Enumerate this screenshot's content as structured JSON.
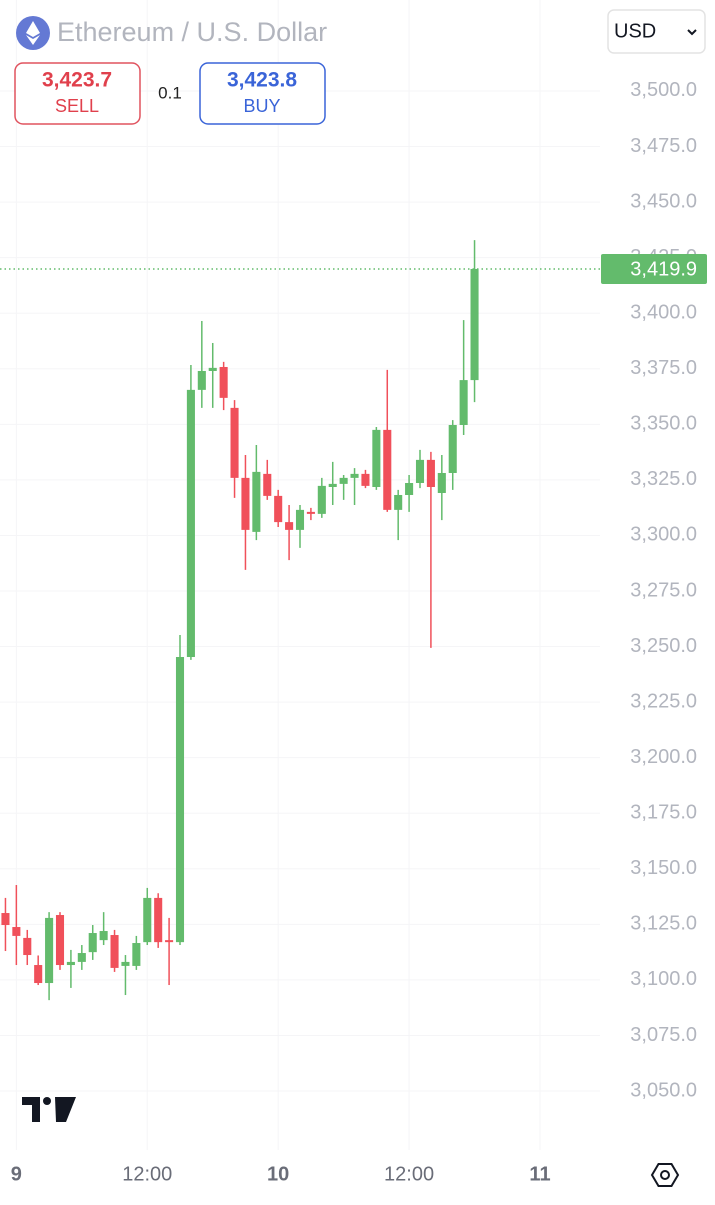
{
  "header": {
    "title": "Ethereum / U.S. Dollar",
    "sell_price": "3,423.7",
    "sell_label": "SELL",
    "spread": "0.1",
    "buy_price": "3,423.8",
    "buy_label": "BUY",
    "currency": "USD"
  },
  "chart_data": {
    "type": "candlestick",
    "up_color": "#63bb6c",
    "down_color": "#f0505a",
    "grid": true,
    "x": [
      -1,
      0,
      1,
      2,
      3,
      4,
      5,
      6,
      7,
      8,
      9,
      10,
      11,
      12,
      13,
      14,
      15,
      16,
      17,
      18,
      19,
      20,
      21,
      22,
      23,
      24,
      25,
      26,
      27,
      28,
      29,
      30,
      31,
      32,
      33,
      34,
      35,
      36,
      37,
      38,
      39,
      40,
      41,
      42
    ],
    "open": [
      3130.1,
      3123.8,
      3118.9,
      3106.7,
      3098.6,
      3129.2,
      3106.7,
      3108.1,
      3112.5,
      3117.9,
      3120.2,
      3106.3,
      3106.3,
      3117,
      3136.9,
      3117.9,
      3117,
      3245.3,
      3365.5,
      3374,
      3375.8,
      3357.4,
      3325.9,
      3301.6,
      3327.7,
      3317.8,
      3306,
      3302.5,
      3310.6,
      3309.7,
      3321.8,
      3323.2,
      3325.9,
      3327.7,
      3321.8,
      3347.5,
      3311.5,
      3318.2,
      3323.6,
      3334,
      3319.1,
      3328.1,
      3349.7,
      3369.9
    ],
    "high": [
      3136.9,
      3142.7,
      3122.5,
      3111,
      3130.5,
      3130.5,
      3113.5,
      3115.7,
      3124.7,
      3130.5,
      3122.5,
      3111.2,
      3119.8,
      3141.4,
      3139,
      3127.9,
      3255.2,
      3376.7,
      3396.5,
      3386.6,
      3378.1,
      3360.9,
      3336.2,
      3340.7,
      3334,
      3320.5,
      3313.7,
      3313.7,
      3312.4,
      3325.9,
      3333.1,
      3327.2,
      3330.3,
      3329.5,
      3348.8,
      3374.5,
      3320.5,
      3327.2,
      3338.5,
      3337.6,
      3336.2,
      3351.9,
      3396.9,
      3432.9
    ],
    "low": [
      3113,
      3106.7,
      3106.7,
      3097.7,
      3090.9,
      3104.5,
      3096.4,
      3104.5,
      3109,
      3115.7,
      3103.6,
      3093.2,
      3104.5,
      3115.7,
      3114.4,
      3097.7,
      3115.7,
      3244,
      3357.4,
      3357.4,
      3356.4,
      3316.9,
      3284.5,
      3297.9,
      3316,
      3303.8,
      3288.9,
      3294.4,
      3306.9,
      3307.9,
      3313.7,
      3316,
      3313.7,
      3321.3,
      3320.5,
      3310.6,
      3297.9,
      3310.6,
      3321.3,
      3249.4,
      3306.9,
      3320.5,
      3345.2,
      3360
    ],
    "close": [
      3124.7,
      3119.8,
      3111.2,
      3098.6,
      3127.9,
      3106.7,
      3108.1,
      3112.1,
      3121.1,
      3122,
      3105.4,
      3108.1,
      3116.6,
      3136.9,
      3117,
      3117,
      3245.3,
      3365.5,
      3374,
      3375.4,
      3361.9,
      3325.9,
      3302.5,
      3328.6,
      3317.8,
      3306,
      3302.5,
      3311.5,
      3309.7,
      3322.3,
      3323.2,
      3325.9,
      3327.7,
      3322.3,
      3347.5,
      3311.5,
      3318.2,
      3323.6,
      3334,
      3321.8,
      3328.1,
      3349.7,
      3369.9,
      3419.9
    ],
    "last_price": {
      "value": 3419.9,
      "label": "3,419.9"
    },
    "xlim": [
      -1.5,
      53.5
    ],
    "xticks": [
      {
        "value": 0,
        "label": "9"
      },
      {
        "value": 12,
        "label": "12:00"
      },
      {
        "value": 24,
        "label": "10"
      },
      {
        "value": 36,
        "label": "12:00"
      },
      {
        "value": 48,
        "label": "11"
      }
    ],
    "ylim": [
      3025,
      3525
    ],
    "yticks": [
      {
        "value": 3050,
        "label": "3,050.0"
      },
      {
        "value": 3075,
        "label": "3,075.0"
      },
      {
        "value": 3100,
        "label": "3,100.0"
      },
      {
        "value": 3125,
        "label": "3,125.0"
      },
      {
        "value": 3150,
        "label": "3,150.0"
      },
      {
        "value": 3175,
        "label": "3,175.0"
      },
      {
        "value": 3200,
        "label": "3,200.0"
      },
      {
        "value": 3225,
        "label": "3,225.0"
      },
      {
        "value": 3250,
        "label": "3,250.0"
      },
      {
        "value": 3275,
        "label": "3,275.0"
      },
      {
        "value": 3300,
        "label": "3,300.0"
      },
      {
        "value": 3325,
        "label": "3,325.0"
      },
      {
        "value": 3350,
        "label": "3,350.0"
      },
      {
        "value": 3375,
        "label": "3,375.0"
      },
      {
        "value": 3400,
        "label": "3,400.0"
      },
      {
        "value": 3425,
        "label": "3,425.0"
      },
      {
        "value": 3450,
        "label": "3,450.0"
      },
      {
        "value": 3475,
        "label": "3,475.0"
      },
      {
        "value": 3500,
        "label": "3,500.0"
      }
    ]
  }
}
